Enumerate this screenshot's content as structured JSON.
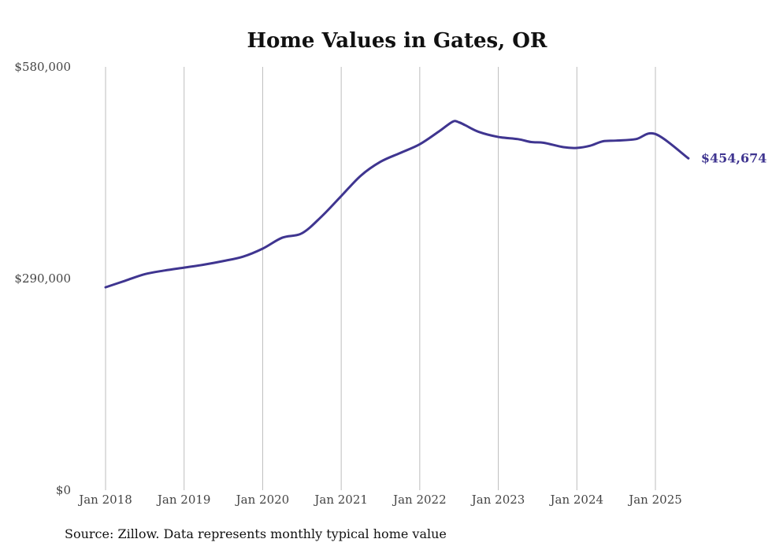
{
  "chart_data": {
    "type": "line",
    "title": "Home Values in Gates, OR",
    "xlabel": "",
    "ylabel": "",
    "ylim": [
      0,
      580000
    ],
    "y_ticks": [
      {
        "value": 0,
        "label": "$0"
      },
      {
        "value": 290000,
        "label": "$290,000"
      },
      {
        "value": 580000,
        "label": "$580,000"
      }
    ],
    "x_ticks": [
      {
        "value": 2018.0,
        "label": "Jan 2018"
      },
      {
        "value": 2019.0,
        "label": "Jan 2019"
      },
      {
        "value": 2020.0,
        "label": "Jan 2020"
      },
      {
        "value": 2021.0,
        "label": "Jan 2021"
      },
      {
        "value": 2022.0,
        "label": "Jan 2022"
      },
      {
        "value": 2023.0,
        "label": "Jan 2023"
      },
      {
        "value": 2024.0,
        "label": "Jan 2024"
      },
      {
        "value": 2025.0,
        "label": "Jan 2025"
      }
    ],
    "grid": {
      "vertical": true,
      "horizontal": false
    },
    "line_color": "#3f3590",
    "grid_color": "#bdbdbd",
    "series": [
      {
        "x": [
          2018.0,
          2018.25,
          2018.5,
          2018.75,
          2019.0,
          2019.25,
          2019.5,
          2019.75,
          2020.0,
          2020.25,
          2020.5,
          2020.75,
          2021.0,
          2021.25,
          2021.5,
          2021.75,
          2022.0,
          2022.25,
          2022.42,
          2022.5,
          2022.58,
          2022.75,
          2023.0,
          2023.25,
          2023.42,
          2023.58,
          2023.83,
          2024.0,
          2024.17,
          2024.33,
          2024.5,
          2024.75,
          2025.0,
          2025.42
        ],
        "y": [
          278000,
          287000,
          296000,
          301000,
          305000,
          309000,
          314000,
          320000,
          331000,
          346000,
          352000,
          375000,
          403000,
          431000,
          450000,
          462000,
          474000,
          492000,
          505000,
          504000,
          500000,
          491000,
          484000,
          481000,
          477000,
          476000,
          470000,
          469000,
          472000,
          478000,
          479000,
          481000,
          488000,
          454674
        ]
      }
    ],
    "end_label": "$454,674",
    "source": "Source: Zillow. Data represents monthly typical home value"
  }
}
